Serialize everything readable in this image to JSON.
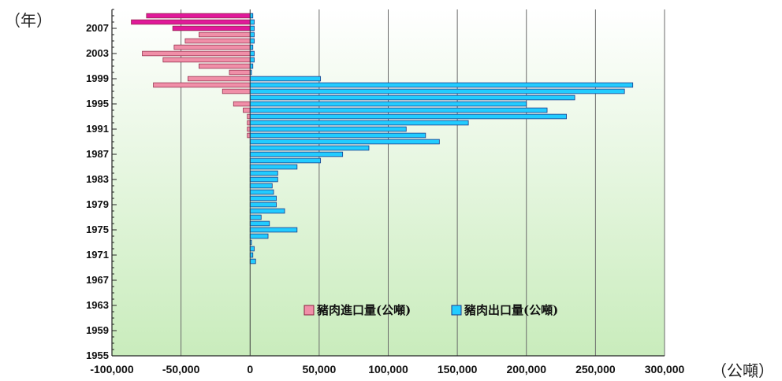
{
  "y_unit_label": "（年）",
  "x_unit_label": "（公噸）",
  "chart_data": {
    "type": "bar",
    "orientation": "horizontal",
    "x_range": [
      -100000,
      300000
    ],
    "x_tick_labels": [
      "-100,000",
      "-50,000",
      "0",
      "50,000",
      "100,000",
      "150,000",
      "200,000",
      "250,000",
      "300,000"
    ],
    "x_tick_values": [
      -100000,
      -50000,
      0,
      50000,
      100000,
      150000,
      200000,
      250000,
      300000
    ],
    "y_range": [
      1955,
      2010
    ],
    "y_tick_labels": [
      "1955",
      "1959",
      "1963",
      "1967",
      "1971",
      "1975",
      "1979",
      "1983",
      "1987",
      "1991",
      "1995",
      "1999",
      "2003",
      "2007"
    ],
    "y_tick_values": [
      1955,
      1959,
      1963,
      1967,
      1971,
      1975,
      1979,
      1983,
      1987,
      1991,
      1995,
      1999,
      2003,
      2007
    ],
    "grid": "vertical",
    "legend_position": "bottom-right",
    "colors": {
      "import": "#f08fa8",
      "import_recent": "#e0199a",
      "export": "#2f8fe0",
      "export_light": "#22ccff",
      "bg_top": "#ffffff",
      "bg_bottom": "#c9ecbc"
    },
    "categories": [
      1970,
      1971,
      1972,
      1973,
      1974,
      1975,
      1976,
      1977,
      1978,
      1979,
      1980,
      1981,
      1982,
      1983,
      1984,
      1985,
      1986,
      1987,
      1988,
      1989,
      1990,
      1991,
      1992,
      1993,
      1994,
      1995,
      1996,
      1997,
      1998,
      1999,
      2000,
      2001,
      2002,
      2003,
      2004,
      2005,
      2006,
      2007,
      2008,
      2009
    ],
    "series": [
      {
        "name": "豬肉進口量(公噸)",
        "values": [
          0,
          0,
          0,
          0,
          0,
          0,
          0,
          0,
          0,
          0,
          0,
          0,
          0,
          0,
          0,
          0,
          0,
          0,
          0,
          0,
          -2000,
          -2000,
          -2000,
          -2000,
          -5000,
          -12000,
          0,
          -20000,
          -70000,
          -45000,
          -15000,
          -37000,
          -63000,
          -78000,
          -55000,
          -47000,
          -37000,
          -56000,
          -86000,
          -75000
        ]
      },
      {
        "name": "豬肉出口量(公噸)",
        "values": [
          4000,
          2000,
          3000,
          1000,
          13000,
          34000,
          14000,
          8000,
          25000,
          19000,
          19000,
          17000,
          16000,
          20000,
          20000,
          34000,
          51000,
          67000,
          86000,
          137000,
          127000,
          113000,
          158000,
          229000,
          215000,
          200000,
          235000,
          271000,
          277000,
          51000,
          1000,
          2000,
          3000,
          3000,
          2000,
          3000,
          3000,
          3000,
          3000,
          2000
        ]
      }
    ]
  }
}
